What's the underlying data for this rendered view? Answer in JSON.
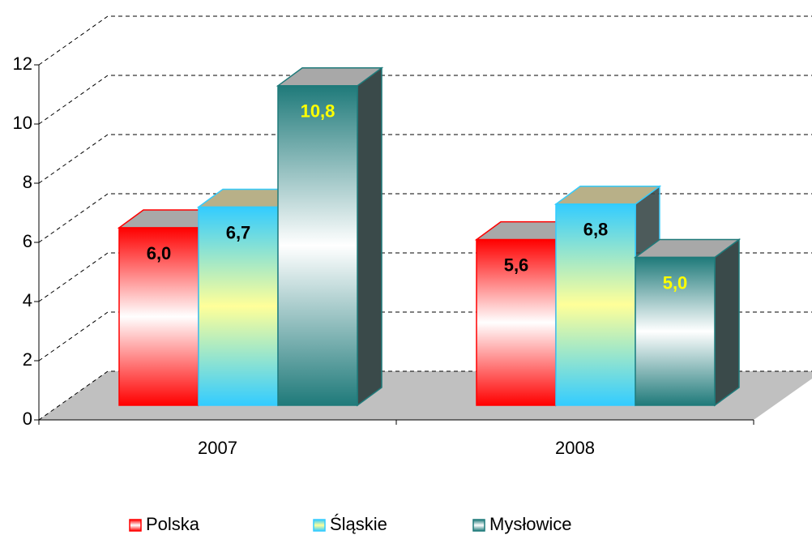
{
  "chart_data": {
    "type": "bar3d",
    "categories": [
      "2007",
      "2008"
    ],
    "series": [
      {
        "name": "Polska",
        "color": "#ff0000",
        "label_color": "#000000",
        "values": [
          6.0,
          5.6
        ],
        "value_labels": [
          "6,0",
          "5,6"
        ]
      },
      {
        "name": "Śląskie",
        "color": "#33ccff",
        "label_color": "#000000",
        "values": [
          6.7,
          6.8
        ],
        "value_labels": [
          "6,7",
          "6,8"
        ]
      },
      {
        "name": "Mysłowice",
        "color": "#1f7a7a",
        "label_color": "#ffff00",
        "values": [
          10.8,
          5.0
        ],
        "value_labels": [
          "10,8",
          "5,0"
        ]
      }
    ],
    "ylim": [
      0,
      12
    ],
    "yticks": [
      0,
      2,
      4,
      6,
      8,
      10,
      12
    ],
    "grid": true,
    "legend": "bottom"
  }
}
